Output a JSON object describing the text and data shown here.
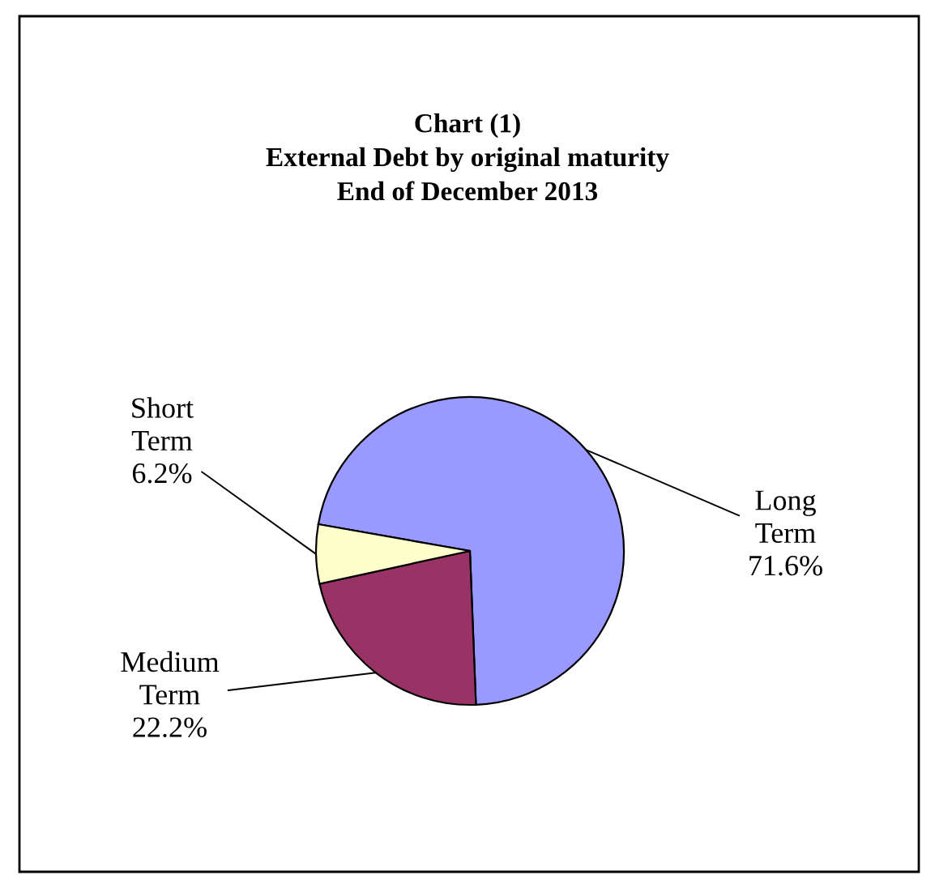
{
  "chart_data": {
    "type": "pie",
    "title": "Chart (1)\nExternal Debt by original maturity\nEnd of December 2013",
    "categories": [
      "Long Term",
      "Medium Term",
      "Short Term"
    ],
    "values": [
      71.6,
      22.2,
      6.2
    ],
    "value_labels": [
      "71.6%",
      "22.2%",
      "6.2%"
    ],
    "colors": [
      "#9999ff",
      "#993366",
      "#ffffcc"
    ],
    "legend": false
  }
}
